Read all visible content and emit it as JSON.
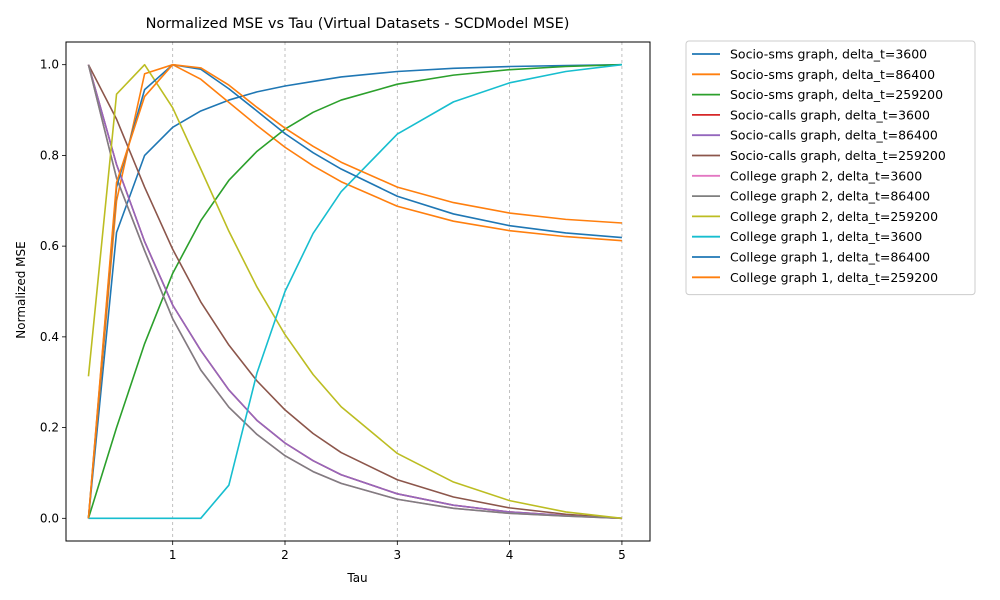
{
  "chart_data": {
    "type": "line",
    "title": "Normalized MSE vs Tau (Virtual Datasets - SCDModel MSE)",
    "xlabel": "Tau",
    "ylabel": "Normalized MSE",
    "xlim": [
      0.05,
      5.25
    ],
    "ylim": [
      -0.05,
      1.05
    ],
    "xticks": [
      1,
      2,
      3,
      4,
      5
    ],
    "yticks": [
      0.0,
      0.2,
      0.4,
      0.6,
      0.8,
      1.0
    ],
    "grid": "vertical-dashed",
    "legend_position": "outside-top-right",
    "x": [
      0.25,
      0.5,
      0.75,
      1.0,
      1.25,
      1.5,
      1.75,
      2.0,
      2.25,
      2.5,
      3.0,
      3.5,
      4.0,
      4.5,
      5.0
    ],
    "series": [
      {
        "name": "Socio-sms graph, delta_t=3600",
        "color": "#1f77b4",
        "values": [
          0.0,
          0.63,
          0.8,
          0.862,
          0.898,
          0.922,
          0.94,
          0.953,
          0.963,
          0.973,
          0.985,
          0.992,
          0.996,
          0.998,
          1.0
        ]
      },
      {
        "name": "Socio-sms graph, delta_t=86400",
        "color": "#ff7f0e",
        "values": [
          0.0,
          0.7,
          0.98,
          1.0,
          0.968,
          0.917,
          0.866,
          0.818,
          0.777,
          0.742,
          0.688,
          0.655,
          0.634,
          0.621,
          0.612
        ]
      },
      {
        "name": "Socio-sms graph, delta_t=259200",
        "color": "#2ca02c",
        "values": [
          0.0,
          0.2,
          0.385,
          0.54,
          0.656,
          0.745,
          0.809,
          0.858,
          0.895,
          0.922,
          0.957,
          0.977,
          0.989,
          0.996,
          1.0
        ]
      },
      {
        "name": "Socio-calls graph, delta_t=3600",
        "color": "#d62728",
        "values": [
          1.0,
          0.78,
          0.61,
          0.47,
          0.37,
          0.283,
          0.216,
          0.166,
          0.127,
          0.096,
          0.054,
          0.029,
          0.014,
          0.006,
          0.0
        ]
      },
      {
        "name": "Socio-calls graph, delta_t=86400",
        "color": "#9467bd",
        "values": [
          1.0,
          0.78,
          0.61,
          0.47,
          0.37,
          0.283,
          0.216,
          0.166,
          0.127,
          0.096,
          0.054,
          0.029,
          0.014,
          0.006,
          0.0
        ]
      },
      {
        "name": "Socio-calls graph, delta_t=259200",
        "color": "#8c564b",
        "values": [
          1.0,
          0.88,
          0.73,
          0.593,
          0.477,
          0.382,
          0.303,
          0.239,
          0.187,
          0.145,
          0.085,
          0.047,
          0.023,
          0.009,
          0.0
        ]
      },
      {
        "name": "College graph 2, delta_t=3600",
        "color": "#e377c2",
        "values": [
          1.0,
          0.75,
          0.59,
          0.44,
          0.327,
          0.245,
          0.185,
          0.138,
          0.103,
          0.077,
          0.042,
          0.022,
          0.011,
          0.005,
          0.0
        ]
      },
      {
        "name": "College graph 2, delta_t=86400",
        "color": "#7f7f7f",
        "values": [
          1.0,
          0.75,
          0.59,
          0.44,
          0.327,
          0.245,
          0.185,
          0.138,
          0.103,
          0.077,
          0.042,
          0.022,
          0.011,
          0.005,
          0.0
        ]
      },
      {
        "name": "College graph 2, delta_t=259200",
        "color": "#bcbd22",
        "values": [
          0.313,
          0.935,
          1.0,
          0.905,
          0.77,
          0.633,
          0.51,
          0.405,
          0.317,
          0.246,
          0.143,
          0.08,
          0.039,
          0.014,
          0.0
        ]
      },
      {
        "name": "College graph 1, delta_t=3600",
        "color": "#17becf",
        "values": [
          0.0,
          0.0,
          0.0,
          0.0,
          0.0,
          0.073,
          0.32,
          0.5,
          0.628,
          0.72,
          0.847,
          0.918,
          0.96,
          0.985,
          1.0
        ]
      },
      {
        "name": "College graph 1, delta_t=86400",
        "color": "#1f77b4",
        "values": [
          0.0,
          0.73,
          0.945,
          1.0,
          0.99,
          0.947,
          0.898,
          0.848,
          0.806,
          0.77,
          0.71,
          0.671,
          0.645,
          0.629,
          0.619
        ]
      },
      {
        "name": "College graph 1, delta_t=259200",
        "color": "#ff7f0e",
        "values": [
          0.0,
          0.74,
          0.93,
          1.0,
          0.993,
          0.955,
          0.906,
          0.86,
          0.82,
          0.785,
          0.73,
          0.696,
          0.673,
          0.659,
          0.651
        ]
      }
    ]
  }
}
